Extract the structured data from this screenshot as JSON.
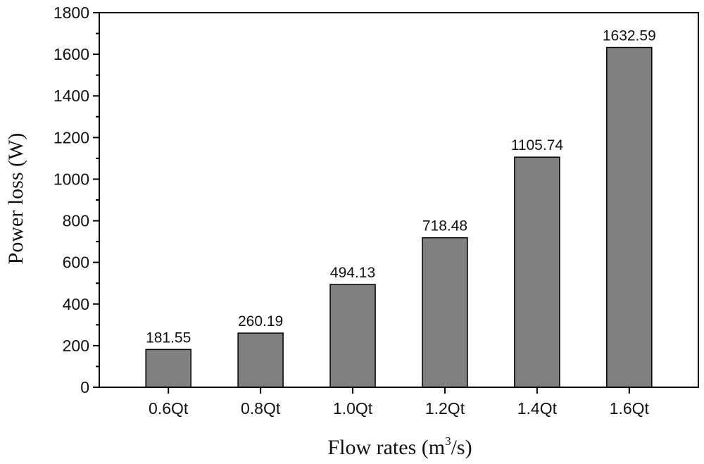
{
  "chart_data": {
    "type": "bar",
    "categories": [
      "0.6Qt",
      "0.8Qt",
      "1.0Qt",
      "1.2Qt",
      "1.4Qt",
      "1.6Qt"
    ],
    "values": [
      181.55,
      260.19,
      494.13,
      718.48,
      1105.74,
      1632.59
    ],
    "data_labels": [
      "181.55",
      "260.19",
      "494.13",
      "718.48",
      "1105.74",
      "1632.59"
    ],
    "title": "",
    "ylabel": "Power loss (W)",
    "xlabel": {
      "prefix": "Flow rates (m",
      "superscript": "3",
      "suffix": "/s)"
    },
    "ylim": [
      0,
      1800
    ],
    "yticks": [
      0,
      200,
      400,
      600,
      800,
      1000,
      1200,
      1400,
      1600,
      1800
    ],
    "grid": false,
    "legend": "none",
    "bar_color": "#808080",
    "bar_edge_color": "#000000"
  }
}
